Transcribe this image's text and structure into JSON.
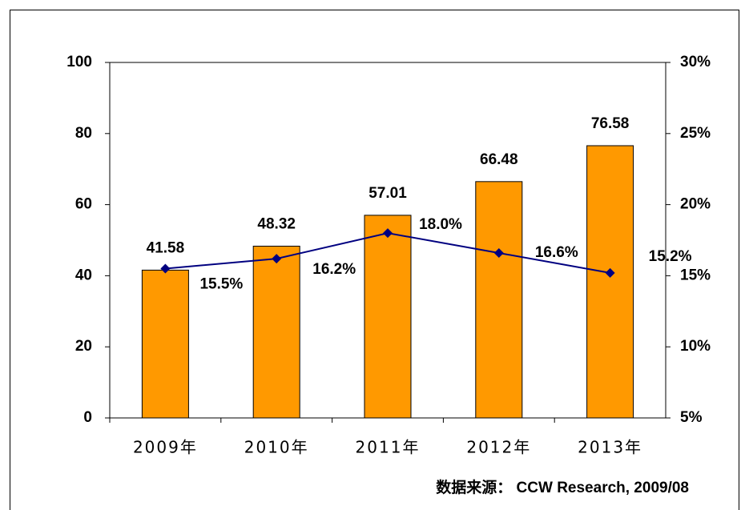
{
  "chart_data": {
    "type": "bar",
    "categories": [
      "2009年",
      "2010年",
      "2011年",
      "2012年",
      "2013年"
    ],
    "series": [
      {
        "type": "bar",
        "color": "#ff9900",
        "values": [
          41.58,
          48.32,
          57.01,
          66.48,
          76.58
        ]
      },
      {
        "type": "line",
        "axis": "y2",
        "color": "#000080",
        "values": [
          15.5,
          16.2,
          18.0,
          16.6,
          15.2
        ],
        "value_labels": [
          "15.5%",
          "16.2%",
          "18.0%",
          "16.6%",
          "15.2%"
        ]
      }
    ],
    "ylim": [
      0,
      100
    ],
    "yticks": [
      0,
      20,
      40,
      60,
      80,
      100
    ],
    "y2lim": [
      5,
      30
    ],
    "y2ticks": [
      {
        "value": 5,
        "label": "5%"
      },
      {
        "value": 10,
        "label": "10%"
      },
      {
        "value": 15,
        "label": "15%"
      },
      {
        "value": 20,
        "label": "20%"
      },
      {
        "value": 25,
        "label": "25%"
      },
      {
        "value": 30,
        "label": "30%"
      }
    ],
    "source": "数据来源： CCW Research, 2009/08"
  }
}
